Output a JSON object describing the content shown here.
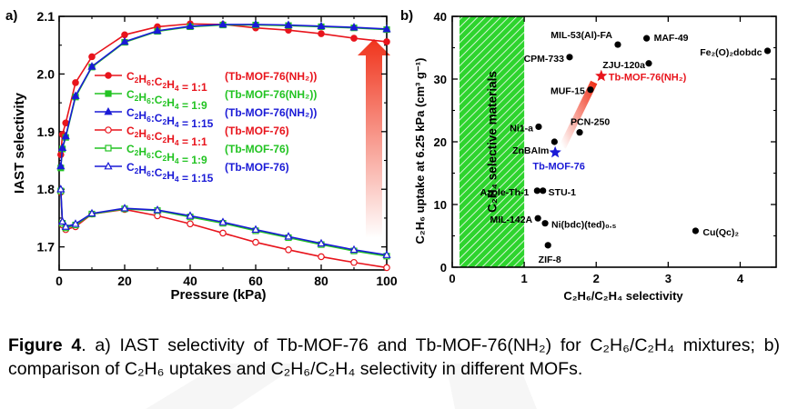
{
  "chart_data": [
    {
      "panel": "a)",
      "type": "line",
      "xlabel": "Pressure (kPa)",
      "ylabel": "IAST selectivity",
      "xlim": [
        0,
        100
      ],
      "ylim": [
        1.66,
        2.1
      ],
      "xticks": [
        "0",
        "20",
        "40",
        "60",
        "80",
        "100"
      ],
      "xtick_values": [
        0,
        20,
        40,
        60,
        80,
        100
      ],
      "yticks": [
        "1.7",
        "1.8",
        "1.9",
        "2.0",
        "2.1"
      ],
      "ytick_values": [
        1.7,
        1.8,
        1.9,
        2.0,
        2.1
      ],
      "series": [
        {
          "legend_ratio": "1:1",
          "legend_material": "(Tb-MOF-76(NH₂))",
          "color": "#e8141c",
          "marker": "circle",
          "filled": true,
          "x": [
            0.5,
            1,
            2,
            5,
            10,
            20,
            30,
            40,
            50,
            60,
            70,
            80,
            90,
            100
          ],
          "y": [
            1.86,
            1.895,
            1.915,
            1.985,
            2.03,
            2.068,
            2.082,
            2.087,
            2.086,
            2.08,
            2.076,
            2.07,
            2.062,
            2.056
          ]
        },
        {
          "legend_ratio": "1:9",
          "legend_material": "(Tb-MOF-76(NH₂))",
          "color": "#22c322",
          "marker": "square",
          "filled": true,
          "x": [
            0.5,
            1,
            2,
            5,
            10,
            20,
            30,
            40,
            50,
            60,
            70,
            80,
            90,
            100
          ],
          "y": [
            1.837,
            1.87,
            1.89,
            1.96,
            2.012,
            2.055,
            2.074,
            2.082,
            2.085,
            2.085,
            2.084,
            2.082,
            2.08,
            2.077
          ]
        },
        {
          "legend_ratio": "1:15",
          "legend_material": "(Tb-MOF-76(NH₂))",
          "color": "#1a1ad6",
          "marker": "triangle",
          "filled": true,
          "x": [
            0.5,
            1,
            2,
            5,
            10,
            20,
            30,
            40,
            50,
            60,
            70,
            80,
            90,
            100
          ],
          "y": [
            1.84,
            1.872,
            1.892,
            1.962,
            2.013,
            2.056,
            2.075,
            2.083,
            2.086,
            2.086,
            2.085,
            2.083,
            2.081,
            2.078
          ]
        },
        {
          "legend_ratio": "1:1",
          "legend_material": "(Tb-MOF-76)",
          "color": "#e8141c",
          "marker": "circle",
          "filled": false,
          "x": [
            0.5,
            1,
            2,
            5,
            10,
            20,
            30,
            40,
            50,
            60,
            70,
            80,
            90,
            100
          ],
          "y": [
            1.795,
            1.738,
            1.73,
            1.735,
            1.757,
            1.765,
            1.754,
            1.74,
            1.724,
            1.708,
            1.695,
            1.683,
            1.673,
            1.664
          ]
        },
        {
          "legend_ratio": "1:9",
          "legend_material": "(Tb-MOF-76)",
          "color": "#22c322",
          "marker": "square",
          "filled": false,
          "x": [
            0.5,
            1,
            2,
            5,
            10,
            20,
            30,
            40,
            50,
            60,
            70,
            80,
            90,
            100
          ],
          "y": [
            1.797,
            1.741,
            1.733,
            1.738,
            1.757,
            1.766,
            1.763,
            1.752,
            1.741,
            1.728,
            1.716,
            1.704,
            1.693,
            1.684
          ]
        },
        {
          "legend_ratio": "1:15",
          "legend_material": "(Tb-MOF-76)",
          "color": "#1a1ad6",
          "marker": "triangle",
          "filled": false,
          "x": [
            0.5,
            1,
            2,
            5,
            10,
            20,
            30,
            40,
            50,
            60,
            70,
            80,
            90,
            100
          ],
          "y": [
            1.8,
            1.744,
            1.735,
            1.74,
            1.758,
            1.767,
            1.764,
            1.754,
            1.743,
            1.73,
            1.718,
            1.706,
            1.695,
            1.686
          ]
        }
      ],
      "legend_position": "center"
    },
    {
      "panel": "b)",
      "type": "scatter",
      "xlabel": "C₂H₆/C₂H₄ selectivity",
      "ylabel": "C₂H₆ uptake at 6.25 kPa (cm³ g⁻¹)",
      "xlim": [
        0,
        4.5
      ],
      "ylim": [
        0,
        40
      ],
      "xticks": [
        "0",
        "1",
        "2",
        "3",
        "4"
      ],
      "xtick_values": [
        0,
        1,
        2,
        3,
        4
      ],
      "yticks": [
        "0",
        "10",
        "20",
        "30",
        "40"
      ],
      "ytick_values": [
        0,
        10,
        20,
        30,
        40
      ],
      "shaded_region_label": "C₂H₄ selective materials",
      "shaded_region_x": [
        0,
        1
      ],
      "points": [
        {
          "name": "MAF-49",
          "x": 2.7,
          "y": 36.5,
          "highlight": false
        },
        {
          "name": "MIL-53(Al)-FA",
          "x": 2.3,
          "y": 35.5,
          "highlight": false
        },
        {
          "name": "CPM-733",
          "x": 1.63,
          "y": 33.5,
          "highlight": false
        },
        {
          "name": "Fe₂(O)₂dobdc",
          "x": 4.38,
          "y": 34.5,
          "highlight": false
        },
        {
          "name": "ZJU-120a",
          "x": 2.73,
          "y": 32.5,
          "highlight": false
        },
        {
          "name": "Tb-MOF-76(NH₂)",
          "x": 2.07,
          "y": 30.5,
          "highlight": true
        },
        {
          "name": "MUF-15",
          "x": 1.92,
          "y": 28.3,
          "highlight": false
        },
        {
          "name": "Ni1-a",
          "x": 1.2,
          "y": 22.4,
          "highlight": false
        },
        {
          "name": "PCN-250",
          "x": 1.77,
          "y": 21.5,
          "highlight": false
        },
        {
          "name": "ZnBAIm",
          "x": 1.42,
          "y": 20.0,
          "highlight": false
        },
        {
          "name": "Tb-MOF-76",
          "x": 1.43,
          "y": 18.3,
          "highlight": true
        },
        {
          "name": "Azole-Th-1",
          "x": 1.18,
          "y": 12.2,
          "highlight": false
        },
        {
          "name": "STU-1",
          "x": 1.26,
          "y": 12.2,
          "highlight": false
        },
        {
          "name": "MIL-142A",
          "x": 1.19,
          "y": 7.8,
          "highlight": false
        },
        {
          "name": "Ni(bdc)(ted)₀.₅",
          "x": 1.29,
          "y": 7.0,
          "highlight": false
        },
        {
          "name": "Cu(Qc)₂",
          "x": 3.38,
          "y": 5.8,
          "highlight": false
        },
        {
          "name": "ZIF-8",
          "x": 1.33,
          "y": 3.5,
          "highlight": false
        }
      ]
    }
  ],
  "caption": {
    "label": "Figure 4",
    "text": ". a) IAST selectivity of Tb-MOF-76 and Tb-MOF-76(NH₂) for C₂H₆/C₂H₄ mixtures; b) comparison of C₂H₆ uptakes and C₂H₆/C₂H₄ selectivity in different MOFs."
  }
}
